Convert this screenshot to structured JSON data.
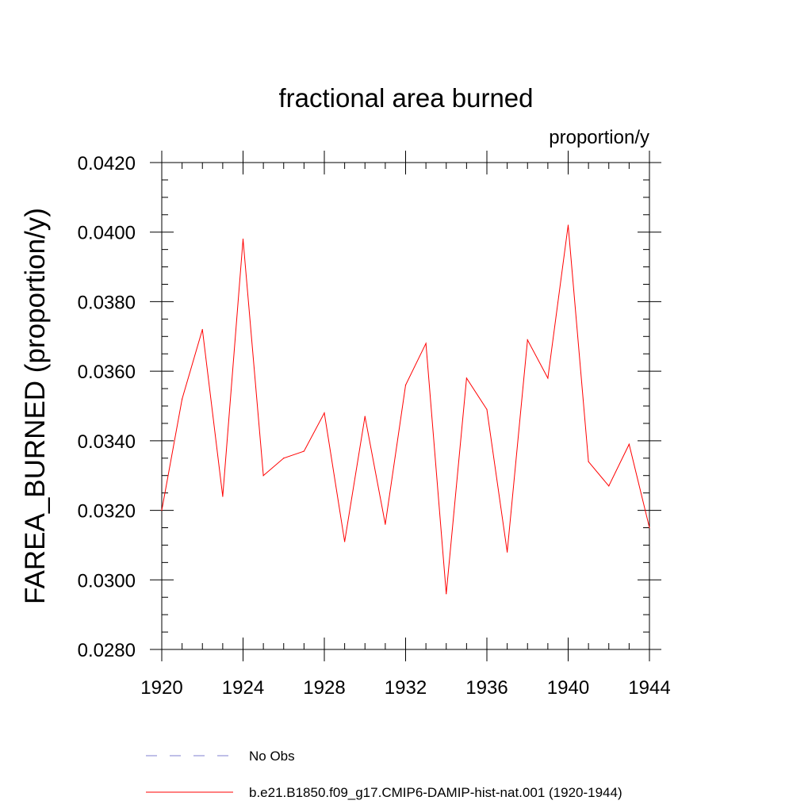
{
  "chart_data": {
    "type": "line",
    "title": "fractional area burned",
    "units_label": "proportion/y",
    "ylabel": "FAREA_BURNED  (proportion/y)",
    "xlabel": "",
    "xlim": [
      1920,
      1944
    ],
    "ylim": [
      0.028,
      0.042
    ],
    "x_ticks": [
      1920,
      1924,
      1928,
      1932,
      1936,
      1940,
      1944
    ],
    "x_tick_labels": [
      "1920",
      "1924",
      "1928",
      "1932",
      "1936",
      "1940",
      "1944"
    ],
    "y_ticks": [
      0.028,
      0.03,
      0.032,
      0.034,
      0.036,
      0.038,
      0.04,
      0.042
    ],
    "y_tick_labels": [
      "0.0280",
      "0.0300",
      "0.0320",
      "0.0340",
      "0.0360",
      "0.0380",
      "0.0400",
      "0.0420"
    ],
    "grid": false,
    "legend_position": "bottom",
    "series": [
      {
        "name": "b.e21.B1850.f09_g17.CMIP6-DAMIP-hist-nat.001 (1920-1944)",
        "color": "#ff0000",
        "style": "solid",
        "x": [
          1920,
          1921,
          1922,
          1923,
          1924,
          1925,
          1926,
          1927,
          1928,
          1929,
          1930,
          1931,
          1932,
          1933,
          1934,
          1935,
          1936,
          1937,
          1938,
          1939,
          1940,
          1941,
          1942,
          1943,
          1944
        ],
        "y": [
          0.032,
          0.0352,
          0.0372,
          0.0324,
          0.0398,
          0.033,
          0.0335,
          0.0337,
          0.0348,
          0.0311,
          0.0347,
          0.0316,
          0.0356,
          0.0368,
          0.0296,
          0.0358,
          0.0349,
          0.0308,
          0.0369,
          0.0358,
          0.0402,
          0.0334,
          0.0327,
          0.0339,
          0.0315
        ]
      }
    ],
    "legend": [
      {
        "label": "No Obs",
        "color": "#7f7fd0",
        "style": "dashed"
      },
      {
        "label": "b.e21.B1850.f09_g17.CMIP6-DAMIP-hist-nat.001 (1920-1944)",
        "color": "#ff0000",
        "style": "solid"
      }
    ]
  }
}
